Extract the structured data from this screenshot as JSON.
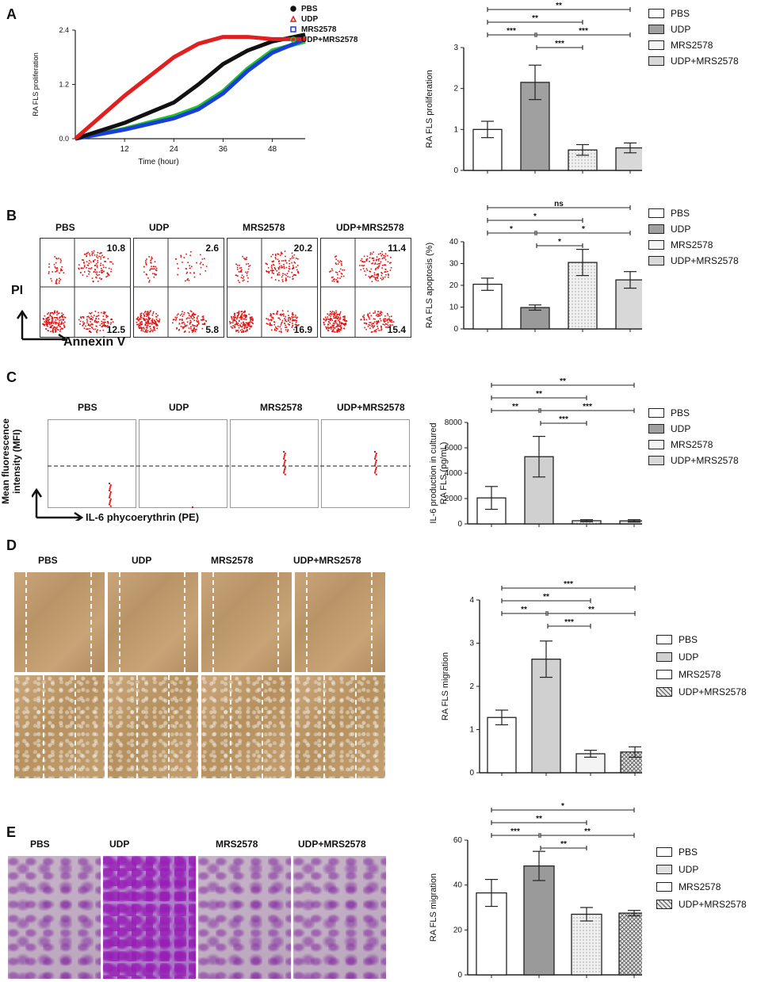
{
  "panels": {
    "A": {
      "letter": "A"
    },
    "B": {
      "letter": "B"
    },
    "C": {
      "letter": "C"
    },
    "D": {
      "letter": "D"
    },
    "E": {
      "letter": "E"
    }
  },
  "groups": [
    "PBS",
    "UDP",
    "MRS2578",
    "UDP+MRS2578"
  ],
  "colors": {
    "pbs": "#ffffff",
    "udp": "#9a9a9a",
    "mrs": "#f4f4f4",
    "combo": "#d8d8d8",
    "axis": "#222222",
    "red": "#e02020",
    "black": "#111111",
    "blue": "#1a3fd8",
    "green": "#22c12a"
  },
  "curveA": {
    "ylabel": "RA FLS proliferation",
    "xlabel": "Time (hour)",
    "yticks": [
      "0.0",
      "1.2",
      "2.4"
    ],
    "xticks": [
      "12",
      "24",
      "36",
      "48"
    ],
    "legend": [
      "PBS",
      "UDP",
      "MRS2578",
      "UDP+MRS2578"
    ]
  },
  "flowB": {
    "top_values": [
      "10.8",
      "2.6",
      "20.2",
      "11.4"
    ],
    "bottom_values": [
      "12.5",
      "5.8",
      "16.9",
      "15.4"
    ],
    "ylabel": "PI",
    "xlabel": "Annexin V"
  },
  "flowC": {
    "ylabel": "Mean fluorescence intensity (MFI)",
    "xlabel": "IL-6 phycoerythrin (PE)"
  },
  "legend_labels": [
    "PBS",
    "UDP",
    "MRS2578",
    "UDP+MRS2578"
  ],
  "chart_data": [
    {
      "panel": "A",
      "type": "line",
      "title": "",
      "xlabel": "Time (hour)",
      "ylabel": "RA FLS proliferation",
      "xlim": [
        0,
        56
      ],
      "ylim": [
        0,
        2.4
      ],
      "series": [
        {
          "name": "PBS",
          "x": [
            0,
            12,
            24,
            30,
            36,
            42,
            48,
            56
          ],
          "y": [
            0.0,
            0.35,
            0.8,
            1.2,
            1.65,
            1.95,
            2.15,
            2.3
          ]
        },
        {
          "name": "UDP",
          "x": [
            0,
            12,
            24,
            30,
            36,
            42,
            48,
            56
          ],
          "y": [
            0.0,
            0.95,
            1.8,
            2.1,
            2.25,
            2.25,
            2.2,
            2.2
          ]
        },
        {
          "name": "MRS2578",
          "x": [
            0,
            12,
            24,
            30,
            36,
            42,
            48,
            56
          ],
          "y": [
            0.0,
            0.2,
            0.45,
            0.65,
            1.0,
            1.5,
            1.9,
            2.2
          ]
        },
        {
          "name": "UDP+MRS2578",
          "x": [
            0,
            12,
            24,
            30,
            36,
            42,
            48,
            56
          ],
          "y": [
            0.0,
            0.22,
            0.5,
            0.7,
            1.05,
            1.55,
            1.95,
            2.15
          ]
        }
      ]
    },
    {
      "panel": "A",
      "type": "bar",
      "categories": [
        "PBS",
        "UDP",
        "MRS2578",
        "UDP+MRS2578"
      ],
      "values": [
        1.0,
        2.15,
        0.5,
        0.55
      ],
      "errors": [
        0.2,
        0.42,
        0.13,
        0.12
      ],
      "ylabel": "RA FLS proliferation",
      "ylim": [
        0,
        3
      ],
      "yticks": [
        "0",
        "1",
        "2",
        "3"
      ],
      "sig": [
        {
          "from": 0,
          "to": 3,
          "label": "**"
        },
        {
          "from": 0,
          "to": 2,
          "label": "**"
        },
        {
          "from": 0,
          "to": 1,
          "label": "***"
        },
        {
          "from": 1,
          "to": 3,
          "label": "***"
        },
        {
          "from": 1,
          "to": 2,
          "label": "***"
        }
      ]
    },
    {
      "panel": "B",
      "type": "bar",
      "categories": [
        "PBS",
        "UDP",
        "MRS2578",
        "UDP+MRS2578"
      ],
      "values": [
        20.5,
        9.8,
        30.5,
        22.5
      ],
      "errors": [
        2.8,
        1.2,
        6.0,
        3.8
      ],
      "ylabel": "RA FLS apoptosis (%)",
      "ylim": [
        0,
        40
      ],
      "yticks": [
        "0",
        "10",
        "20",
        "30",
        "40"
      ],
      "sig": [
        {
          "from": 0,
          "to": 3,
          "label": "ns"
        },
        {
          "from": 0,
          "to": 2,
          "label": "*"
        },
        {
          "from": 0,
          "to": 1,
          "label": "*"
        },
        {
          "from": 1,
          "to": 3,
          "label": "*"
        },
        {
          "from": 1,
          "to": 2,
          "label": "*"
        }
      ]
    },
    {
      "panel": "C",
      "type": "bar",
      "categories": [
        "PBS",
        "UDP",
        "MRS2578",
        "UDP+MRS2578"
      ],
      "values": [
        2050,
        5300,
        250,
        240
      ],
      "errors": [
        900,
        1600,
        80,
        90
      ],
      "ylabel": "IL-6 production in cultured RA FLS (pg/mL)",
      "ylim": [
        0,
        8000
      ],
      "yticks": [
        "0",
        "2000",
        "4000",
        "6000",
        "8000"
      ],
      "sig": [
        {
          "from": 0,
          "to": 3,
          "label": "**"
        },
        {
          "from": 0,
          "to": 2,
          "label": "**"
        },
        {
          "from": 0,
          "to": 1,
          "label": "**"
        },
        {
          "from": 1,
          "to": 3,
          "label": "***"
        },
        {
          "from": 1,
          "to": 2,
          "label": "***"
        }
      ]
    },
    {
      "panel": "D",
      "type": "bar",
      "categories": [
        "PBS",
        "UDP",
        "MRS2578",
        "UDP+MRS2578"
      ],
      "values": [
        1.28,
        2.63,
        0.44,
        0.48
      ],
      "errors": [
        0.17,
        0.42,
        0.08,
        0.12
      ],
      "ylabel": "RA FLS migration",
      "ylim": [
        0,
        4
      ],
      "yticks": [
        "0",
        "1",
        "2",
        "3",
        "4"
      ],
      "sig": [
        {
          "from": 0,
          "to": 3,
          "label": "***"
        },
        {
          "from": 0,
          "to": 2,
          "label": "**"
        },
        {
          "from": 0,
          "to": 1,
          "label": "**"
        },
        {
          "from": 1,
          "to": 3,
          "label": "**"
        },
        {
          "from": 1,
          "to": 2,
          "label": "***"
        }
      ]
    },
    {
      "panel": "E",
      "type": "bar",
      "categories": [
        "PBS",
        "UDP",
        "MRS2578",
        "UDP+MRS2578"
      ],
      "values": [
        36.5,
        48.5,
        27.0,
        27.5
      ],
      "errors": [
        6.0,
        6.5,
        3.0,
        1.2
      ],
      "ylabel": "RA FLS migration",
      "ylim": [
        0,
        60
      ],
      "yticks": [
        "0",
        "20",
        "40",
        "60"
      ],
      "sig": [
        {
          "from": 0,
          "to": 3,
          "label": "*"
        },
        {
          "from": 0,
          "to": 2,
          "label": "**"
        },
        {
          "from": 0,
          "to": 1,
          "label": "***"
        },
        {
          "from": 1,
          "to": 3,
          "label": "**"
        },
        {
          "from": 1,
          "to": 2,
          "label": "**"
        }
      ]
    }
  ]
}
